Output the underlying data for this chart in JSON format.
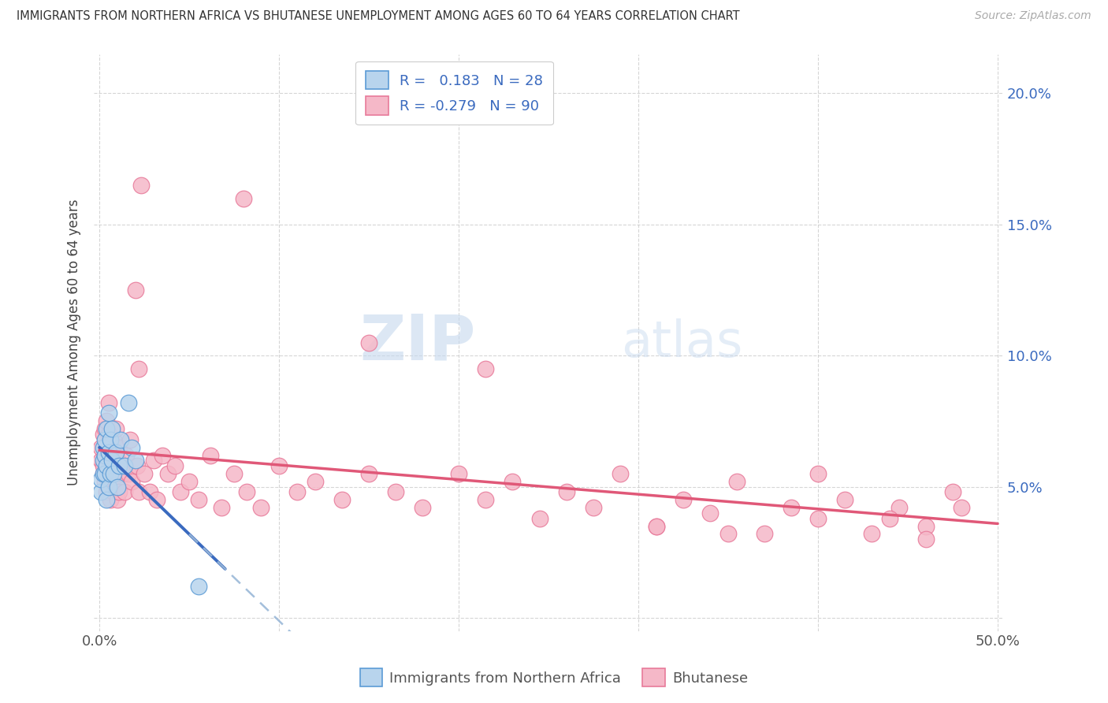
{
  "title": "IMMIGRANTS FROM NORTHERN AFRICA VS BHUTANESE UNEMPLOYMENT AMONG AGES 60 TO 64 YEARS CORRELATION CHART",
  "source": "Source: ZipAtlas.com",
  "ylabel": "Unemployment Among Ages 60 to 64 years",
  "xlim": [
    -0.003,
    0.503
  ],
  "ylim": [
    -0.005,
    0.215
  ],
  "x_ticks": [
    0.0,
    0.1,
    0.2,
    0.3,
    0.4,
    0.5
  ],
  "x_tick_labels": [
    "0.0%",
    "",
    "",
    "",
    "",
    "50.0%"
  ],
  "y_ticks": [
    0.0,
    0.05,
    0.1,
    0.15,
    0.2
  ],
  "y_tick_labels_right": [
    "",
    "5.0%",
    "10.0%",
    "15.0%",
    "20.0%"
  ],
  "blue_R": 0.183,
  "blue_N": 28,
  "pink_R": -0.279,
  "pink_N": 90,
  "blue_fill_color": "#b8d4ed",
  "pink_fill_color": "#f5b8c8",
  "blue_edge_color": "#5b9bd5",
  "pink_edge_color": "#e87a9a",
  "blue_line_color": "#3a6abf",
  "pink_line_color": "#e05878",
  "dash_line_color": "#9ab8d8",
  "legend_label_blue": "Immigrants from Northern Africa",
  "legend_label_pink": "Bhutanese",
  "watermark_zip": "ZIP",
  "watermark_atlas": "atlas",
  "blue_x": [
    0.001,
    0.001,
    0.002,
    0.002,
    0.002,
    0.003,
    0.003,
    0.003,
    0.004,
    0.004,
    0.004,
    0.005,
    0.005,
    0.005,
    0.006,
    0.006,
    0.007,
    0.007,
    0.008,
    0.009,
    0.01,
    0.011,
    0.012,
    0.014,
    0.016,
    0.018,
    0.02,
    0.055
  ],
  "blue_y": [
    0.048,
    0.053,
    0.055,
    0.06,
    0.065,
    0.055,
    0.062,
    0.068,
    0.045,
    0.058,
    0.072,
    0.05,
    0.063,
    0.078,
    0.055,
    0.068,
    0.06,
    0.072,
    0.055,
    0.063,
    0.05,
    0.058,
    0.068,
    0.058,
    0.082,
    0.065,
    0.06,
    0.012
  ],
  "pink_x": [
    0.001,
    0.001,
    0.002,
    0.002,
    0.002,
    0.003,
    0.003,
    0.003,
    0.004,
    0.004,
    0.004,
    0.005,
    0.005,
    0.005,
    0.005,
    0.006,
    0.006,
    0.006,
    0.007,
    0.007,
    0.008,
    0.008,
    0.009,
    0.009,
    0.01,
    0.01,
    0.011,
    0.011,
    0.012,
    0.013,
    0.014,
    0.015,
    0.016,
    0.017,
    0.018,
    0.02,
    0.021,
    0.022,
    0.023,
    0.025,
    0.028,
    0.03,
    0.032,
    0.035,
    0.038,
    0.042,
    0.045,
    0.05,
    0.055,
    0.062,
    0.068,
    0.075,
    0.082,
    0.09,
    0.1,
    0.11,
    0.12,
    0.135,
    0.15,
    0.165,
    0.18,
    0.2,
    0.215,
    0.23,
    0.245,
    0.26,
    0.275,
    0.29,
    0.31,
    0.325,
    0.34,
    0.355,
    0.37,
    0.385,
    0.4,
    0.415,
    0.43,
    0.445,
    0.46,
    0.475,
    0.022,
    0.08,
    0.15,
    0.215,
    0.31,
    0.35,
    0.4,
    0.44,
    0.46,
    0.48
  ],
  "pink_y": [
    0.06,
    0.065,
    0.055,
    0.058,
    0.07,
    0.052,
    0.062,
    0.072,
    0.048,
    0.06,
    0.075,
    0.05,
    0.062,
    0.07,
    0.082,
    0.045,
    0.058,
    0.068,
    0.052,
    0.065,
    0.048,
    0.068,
    0.052,
    0.072,
    0.045,
    0.06,
    0.048,
    0.065,
    0.058,
    0.055,
    0.048,
    0.062,
    0.055,
    0.068,
    0.052,
    0.125,
    0.058,
    0.048,
    0.165,
    0.055,
    0.048,
    0.06,
    0.045,
    0.062,
    0.055,
    0.058,
    0.048,
    0.052,
    0.045,
    0.062,
    0.042,
    0.055,
    0.048,
    0.042,
    0.058,
    0.048,
    0.052,
    0.045,
    0.055,
    0.048,
    0.042,
    0.055,
    0.045,
    0.052,
    0.038,
    0.048,
    0.042,
    0.055,
    0.035,
    0.045,
    0.04,
    0.052,
    0.032,
    0.042,
    0.038,
    0.045,
    0.032,
    0.042,
    0.035,
    0.048,
    0.095,
    0.16,
    0.105,
    0.095,
    0.035,
    0.032,
    0.055,
    0.038,
    0.03,
    0.042
  ]
}
